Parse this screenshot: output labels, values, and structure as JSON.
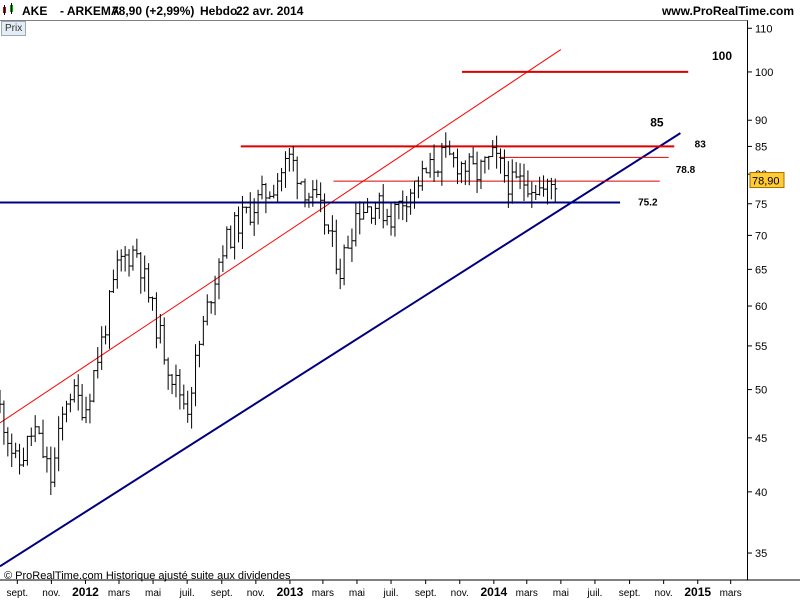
{
  "header": {
    "symbol": "AKE",
    "separator_name": "- ARKEMA",
    "price_change": "78,90 (+2,99%)",
    "period": "Hebdo",
    "date": "22 avr. 2014",
    "site": "www.ProRealTime.com"
  },
  "panel_tab": "Prix",
  "footer": "© ProRealTime.com Historique ajusté suite aux dividendes",
  "current_price_label": "78,90",
  "colors": {
    "bars": "#000000",
    "support": "#00007f",
    "trend_channel": "#00007f",
    "trend_red": "#ff0000",
    "resistance": "#dd0000",
    "price_badge": "#ffcc33"
  },
  "chart_data": {
    "type": "line",
    "scale": "log",
    "ylim": [
      33,
      112
    ],
    "y_ticks": [
      35,
      40,
      45,
      50,
      55,
      60,
      65,
      70,
      75,
      80,
      85,
      90,
      100,
      110
    ],
    "x_ticks": [
      "sept.",
      "nov.",
      "2012",
      "mars",
      "mai",
      "juil.",
      "sept.",
      "nov.",
      "2013",
      "mars",
      "mai",
      "juil.",
      "sept.",
      "nov.",
      "2014",
      "mars",
      "mai",
      "juil.",
      "sept.",
      "nov.",
      "2015",
      "mars"
    ],
    "x_tick_dates": [
      "2011-09-01",
      "2011-11-01",
      "2012-01-01",
      "2012-03-01",
      "2012-05-01",
      "2012-07-01",
      "2012-09-01",
      "2012-11-01",
      "2013-01-01",
      "2013-03-01",
      "2013-05-01",
      "2013-07-01",
      "2013-09-01",
      "2013-11-01",
      "2014-01-01",
      "2014-03-01",
      "2014-05-01",
      "2014-07-01",
      "2014-09-01",
      "2014-11-01",
      "2015-01-01",
      "2015-03-01"
    ],
    "price_points": [
      [
        "2011-08-01",
        48
      ],
      [
        "2011-09-01",
        42
      ],
      [
        "2011-10-01",
        46
      ],
      [
        "2011-11-01",
        41
      ],
      [
        "2011-12-01",
        50
      ],
      [
        "2012-01-01",
        48
      ],
      [
        "2012-02-01",
        56
      ],
      [
        "2012-03-01",
        66
      ],
      [
        "2012-04-01",
        68
      ],
      [
        "2012-05-01",
        59
      ],
      [
        "2012-06-01",
        52
      ],
      [
        "2012-07-01",
        48
      ],
      [
        "2012-08-01",
        58
      ],
      [
        "2012-09-01",
        68
      ],
      [
        "2012-10-01",
        72
      ],
      [
        "2012-11-01",
        75
      ],
      [
        "2012-12-01",
        78
      ],
      [
        "2013-01-01",
        83
      ],
      [
        "2013-02-01",
        77
      ],
      [
        "2013-03-01",
        73
      ],
      [
        "2013-04-01",
        65
      ],
      [
        "2013-05-01",
        74
      ],
      [
        "2013-06-01",
        75
      ],
      [
        "2013-07-01",
        73
      ],
      [
        "2013-08-01",
        77
      ],
      [
        "2013-09-01",
        80
      ],
      [
        "2013-10-01",
        83
      ],
      [
        "2013-11-01",
        82
      ],
      [
        "2013-12-01",
        80
      ],
      [
        "2014-01-01",
        83
      ],
      [
        "2014-02-01",
        78
      ],
      [
        "2014-03-01",
        79
      ],
      [
        "2014-04-01",
        77
      ],
      [
        "2014-04-22",
        78.9
      ]
    ],
    "support_line": {
      "label": "75.2",
      "value": 75.2,
      "from": "2011-08-01",
      "to": "2014-08-15"
    },
    "lines": [
      {
        "kind": "resistance",
        "label": "100",
        "value": 100,
        "from": "2013-11-05",
        "to": "2014-12-15"
      },
      {
        "kind": "resistance",
        "label": "85",
        "value": 85,
        "from": "2012-10-05",
        "to": "2014-11-20"
      },
      {
        "kind": "resistance",
        "label": "83",
        "value": 83,
        "from": "2014-01-10",
        "to": "2014-11-10"
      },
      {
        "kind": "resistance",
        "label": "78.8",
        "value": 78.8,
        "from": "2013-03-20",
        "to": "2014-10-25"
      }
    ],
    "trendlines": [
      {
        "kind": "red-trend",
        "from": [
          "2011-08-01",
          46.5
        ],
        "to": [
          "2014-05-01",
          105
        ]
      },
      {
        "kind": "blue-trend",
        "from": [
          "2011-08-01",
          34
        ],
        "to": [
          "2014-12-01",
          87.5
        ]
      }
    ]
  }
}
